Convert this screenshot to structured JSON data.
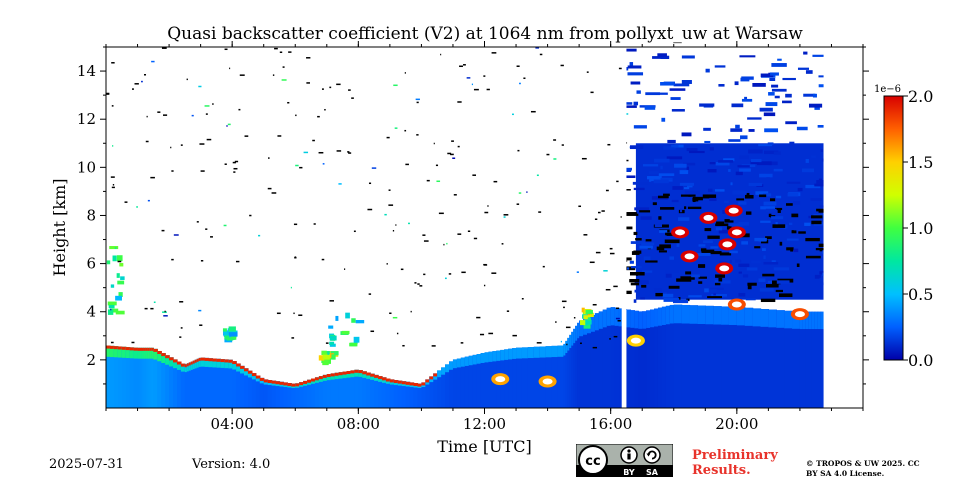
{
  "chart_data": {
    "type": "heatmap",
    "title": "Quasi backscatter coefficient (V2) at 1064 nm from pollyxt_uw at Warsaw",
    "xlabel": "Time [UTC]",
    "ylabel": "Height [km]",
    "x_unit": "hours UTC",
    "xlim": [
      0,
      24
    ],
    "ylim": [
      0,
      15
    ],
    "x_ticks": [
      4,
      8,
      12,
      16,
      20
    ],
    "x_tick_labels": [
      "04:00",
      "08:00",
      "12:00",
      "16:00",
      "20:00"
    ],
    "y_ticks": [
      2,
      4,
      6,
      8,
      10,
      12,
      14
    ],
    "y_tick_labels": [
      "2",
      "4",
      "6",
      "8",
      "10",
      "12",
      "14"
    ],
    "colorbar": {
      "min": 0.0,
      "max": 2.0,
      "scale_label": "1e−6",
      "ticks": [
        0.0,
        0.5,
        1.0,
        1.5,
        2.0
      ],
      "tick_labels": [
        "0.0",
        "0.5",
        "1.0",
        "1.5",
        "2.0"
      ],
      "colormap": [
        "#0000a8",
        "#0060ff",
        "#00c0ff",
        "#00e8a0",
        "#40ff40",
        "#d0ff00",
        "#ffd000",
        "#ff6000",
        "#d80000"
      ]
    },
    "data_end_hour": 22.75,
    "gaps_hours": [
      [
        16.35,
        16.5
      ]
    ],
    "boundary_layer": [
      {
        "t": 0.0,
        "top": 2.6,
        "val": 0.9
      },
      {
        "t": 1.0,
        "top": 2.5,
        "val": 0.8
      },
      {
        "t": 1.5,
        "top": 2.5,
        "val": 0.9
      },
      {
        "t": 2.5,
        "top": 1.8,
        "val": 0.6
      },
      {
        "t": 3.0,
        "top": 2.1,
        "val": 0.6
      },
      {
        "t": 4.0,
        "top": 2.0,
        "val": 0.6
      },
      {
        "t": 5.0,
        "top": 1.2,
        "val": 0.5
      },
      {
        "t": 6.0,
        "top": 1.0,
        "val": 0.6
      },
      {
        "t": 7.0,
        "top": 1.4,
        "val": 0.7
      },
      {
        "t": 8.0,
        "top": 1.6,
        "val": 0.7
      },
      {
        "t": 9.0,
        "top": 1.2,
        "val": 0.6
      },
      {
        "t": 10.0,
        "top": 1.0,
        "val": 0.5
      },
      {
        "t": 11.0,
        "top": 2.0,
        "val": 0.4
      },
      {
        "t": 12.0,
        "top": 2.3,
        "val": 0.4
      },
      {
        "t": 13.0,
        "top": 2.5,
        "val": 0.4
      },
      {
        "t": 14.5,
        "top": 2.6,
        "val": 0.4
      },
      {
        "t": 15.0,
        "top": 3.6,
        "val": 0.3
      },
      {
        "t": 16.0,
        "top": 4.2,
        "val": 0.3
      },
      {
        "t": 17.0,
        "top": 4.0,
        "val": 0.25
      },
      {
        "t": 18.0,
        "top": 4.3,
        "val": 0.3
      },
      {
        "t": 20.0,
        "top": 4.2,
        "val": 0.3
      },
      {
        "t": 22.0,
        "top": 4.0,
        "val": 0.3
      },
      {
        "t": 22.75,
        "top": 4.0,
        "val": 0.3
      }
    ],
    "aerosol_layers": [
      {
        "t0": 0.0,
        "t1": 0.5,
        "h0": 4.0,
        "h1": 7.0,
        "val": 1.1
      },
      {
        "t0": 3.7,
        "t1": 3.9,
        "h0": 2.9,
        "h1": 3.4,
        "val": 0.9
      },
      {
        "t0": 6.7,
        "t1": 7.3,
        "h0": 2.0,
        "h1": 2.4,
        "val": 1.5
      },
      {
        "t0": 7.0,
        "t1": 8.0,
        "h0": 2.5,
        "h1": 4.0,
        "val": 1.0
      },
      {
        "t0": 15.0,
        "t1": 15.3,
        "h0": 3.5,
        "h1": 4.2,
        "val": 1.6
      }
    ],
    "cirrus_region": {
      "t0": 16.8,
      "t1": 22.75,
      "h0": 4.5,
      "h1": 15.0,
      "val": 0.1
    },
    "clouds": [
      {
        "t": 18.2,
        "h": 7.3,
        "val": 2.0
      },
      {
        "t": 18.5,
        "h": 6.3,
        "val": 2.0
      },
      {
        "t": 19.7,
        "h": 6.8,
        "val": 2.0
      },
      {
        "t": 19.6,
        "h": 5.8,
        "val": 2.0
      },
      {
        "t": 19.9,
        "h": 8.2,
        "val": 2.0
      },
      {
        "t": 20.0,
        "h": 7.3,
        "val": 2.0
      },
      {
        "t": 19.1,
        "h": 7.9,
        "val": 2.0
      },
      {
        "t": 20.0,
        "h": 4.3,
        "val": 1.8
      },
      {
        "t": 22.0,
        "h": 3.9,
        "val": 1.8
      },
      {
        "t": 12.5,
        "h": 1.2,
        "val": 1.6
      },
      {
        "t": 14.0,
        "h": 1.1,
        "val": 1.6
      },
      {
        "t": 16.8,
        "h": 2.8,
        "val": 1.5
      }
    ]
  },
  "footer": {
    "date": "2025-07-31",
    "version": "Version: 4.0",
    "preliminary": "Preliminary Results.",
    "copyright": "© TROPOS & UW 2025. CC BY SA 4.0 License.",
    "cc_icons": [
      "cc",
      "by",
      "sa"
    ],
    "cc_labels": [
      "BY",
      "SA"
    ]
  }
}
